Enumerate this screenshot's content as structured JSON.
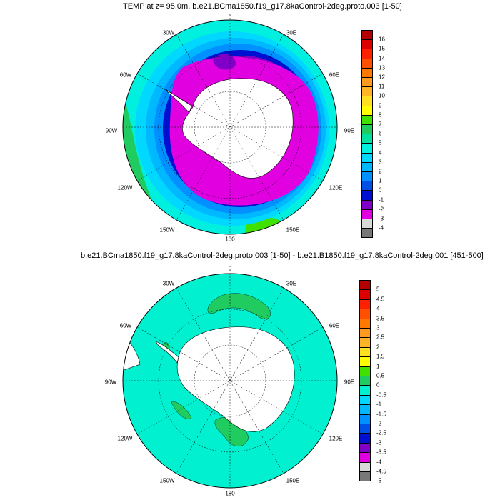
{
  "top": {
    "title": "TEMP at z=  95.0m, b.e21.BCma1850.f19_g17.8kaControl-2deg.proto.003 [1-50]",
    "lon_labels": {
      "n": "0",
      "ne": "30E",
      "e1": "60E",
      "e": "90E",
      "se1": "120E",
      "se": "150E",
      "s": "180",
      "sw": "150W",
      "w1": "120W",
      "w": "90W",
      "nw1": "60W",
      "nw": "30W"
    },
    "colorbar": {
      "labels": [
        "16",
        "15",
        "14",
        "13",
        "12",
        "11",
        "10",
        "9",
        "8",
        "7",
        "6",
        "5",
        "4",
        "3",
        "2",
        "1",
        "0",
        "-1",
        "-2",
        "-3",
        "-4"
      ],
      "colors": [
        "#b40000",
        "#dc0000",
        "#ff2000",
        "#ff5000",
        "#ff7800",
        "#ff9a20",
        "#ffb428",
        "#ffe020",
        "#ffff00",
        "#40e000",
        "#20cc60",
        "#00e0a0",
        "#00f0e0",
        "#00d8ff",
        "#00b8ff",
        "#0090ff",
        "#0050e8",
        "#0010d0",
        "#8000c8",
        "#e000e0",
        "#d8d8d8",
        "#787878"
      ]
    }
  },
  "bottom": {
    "title": "b.e21.BCma1850.f19_g17.8kaControl-2deg.proto.003 [1-50] - b.e21.B1850.f19_g17.8kaControl-2deg.001 [451-500]",
    "lon_labels": {
      "n": "0",
      "ne": "30E",
      "e1": "60E",
      "e": "90E",
      "se1": "120E",
      "se": "150E",
      "s": "180",
      "sw": "150W",
      "w1": "120W",
      "w": "90W",
      "nw1": "60W",
      "nw": "30W"
    },
    "colorbar": {
      "labels": [
        "5",
        "4.5",
        "4",
        "3.5",
        "3",
        "2.5",
        "2",
        "1.5",
        "1",
        "0.5",
        "0",
        "-0.5",
        "-1",
        "-1.5",
        "-2",
        "-2.5",
        "-3",
        "-3.5",
        "-4",
        "-4.5",
        "-5"
      ],
      "colors": [
        "#b40000",
        "#dc0000",
        "#ff2000",
        "#ff5000",
        "#ff7800",
        "#ff9a20",
        "#ffb428",
        "#ffe020",
        "#ffff00",
        "#40e000",
        "#20cc60",
        "#00f0d0",
        "#00d8ff",
        "#00b8ff",
        "#0090ff",
        "#0050e8",
        "#0010d0",
        "#8000c8",
        "#e000e0",
        "#d8d8d8",
        "#787878"
      ]
    }
  }
}
